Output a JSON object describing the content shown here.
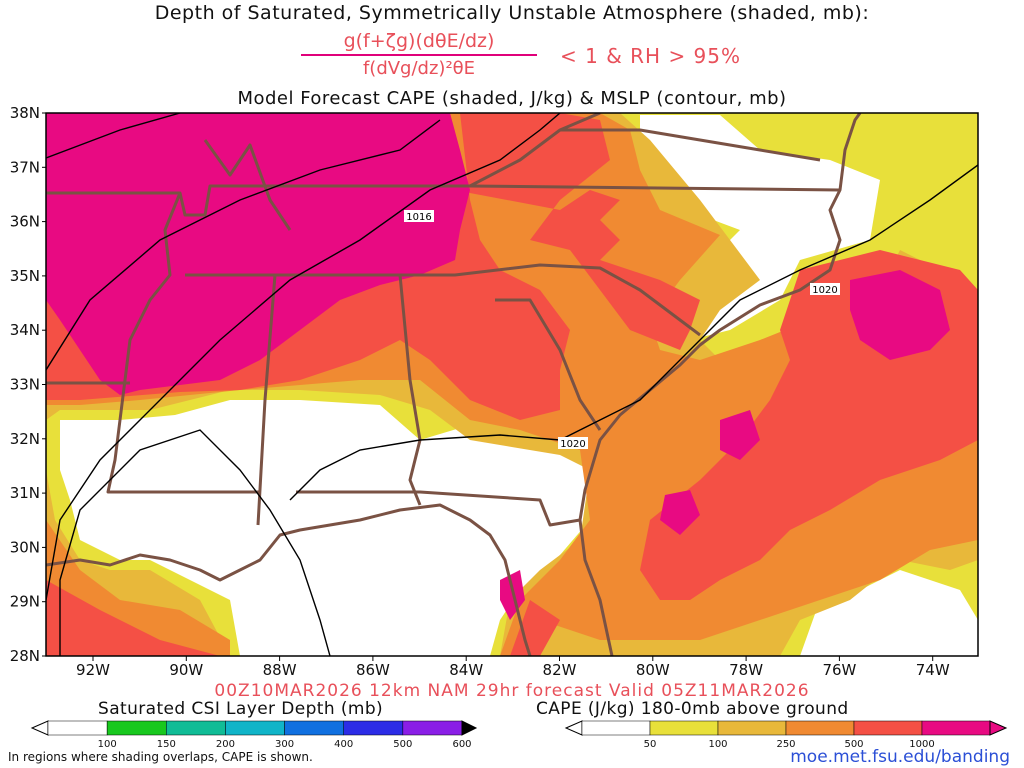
{
  "header": {
    "title_line1": "Depth of Saturated, Symmetrically Unstable Atmosphere (shaded, mb):",
    "numerator": "g(f+ζg)(dθE/dz)",
    "denominator": "f(dVg/dz)²θE",
    "condition": "< 1 & RH > 95%",
    "title_line3": "Model Forecast CAPE (shaded, J/kg) & MSLP (contour, mb)"
  },
  "map": {
    "lat_labels": [
      "38N",
      "37N",
      "36N",
      "35N",
      "34N",
      "33N",
      "32N",
      "31N",
      "30N",
      "29N",
      "28N"
    ],
    "lon_labels": [
      "92W",
      "90W",
      "88W",
      "86W",
      "84W",
      "82W",
      "80W",
      "78W",
      "76W",
      "74W"
    ],
    "isobar_labels": [
      "1016",
      "1020",
      "1020"
    ],
    "colors": {
      "cape_50": "#e8e03a",
      "cape_100": "#e8b83a",
      "cape_250": "#f08a32",
      "cape_500": "#f45045",
      "cape_1000": "#e80a82",
      "borders": "#7a5244",
      "isobars": "#000000"
    }
  },
  "footer": {
    "valid_line": "00Z10MAR2026 12km NAM 29hr forecast Valid 05Z11MAR2026",
    "left_legend_title": "Saturated CSI Layer Depth (mb)",
    "left_legend_ticks": [
      "100",
      "150",
      "200",
      "300",
      "400",
      "500",
      "600"
    ],
    "left_legend_colors": [
      "#18c81e",
      "#10bc96",
      "#10b4c8",
      "#1070e0",
      "#2c2ce6",
      "#8a1ee6"
    ],
    "right_legend_title": "CAPE (J/kg) 180-0mb above ground",
    "right_legend_ticks": [
      "50",
      "100",
      "250",
      "500",
      "1000"
    ],
    "right_legend_colors": [
      "#e8e03a",
      "#e8b83a",
      "#f08a32",
      "#f45045"
    ],
    "note": "In regions where shading overlaps, CAPE is shown.",
    "url": "moe.met.fsu.edu/banding"
  }
}
